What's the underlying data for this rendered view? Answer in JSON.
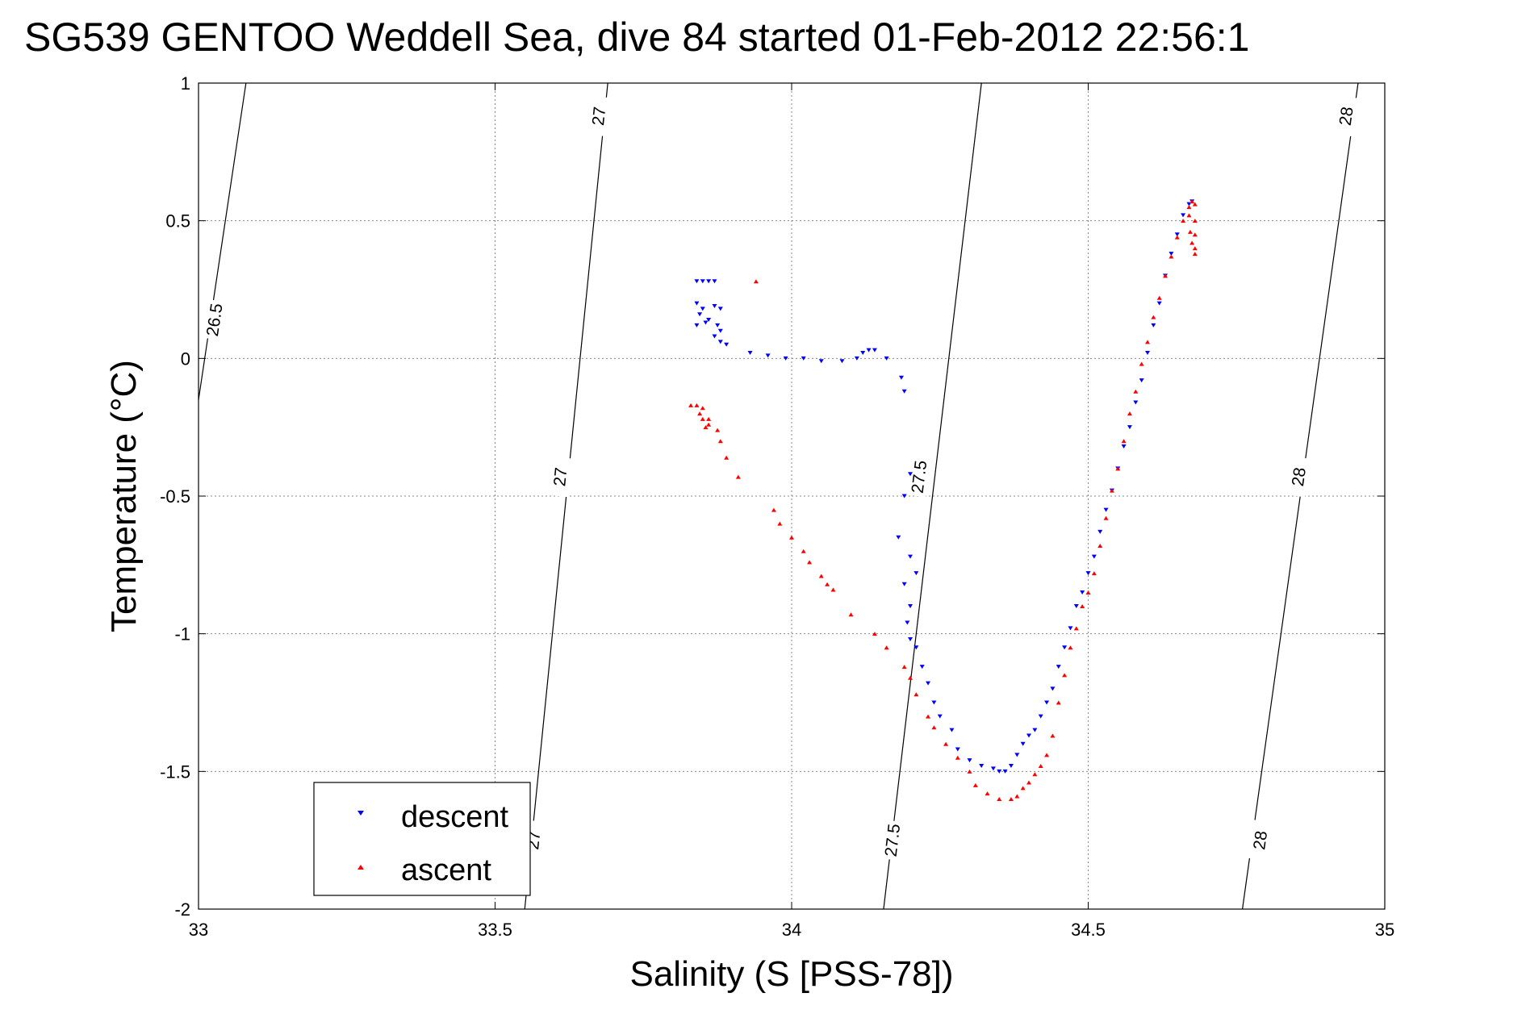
{
  "chart_data": {
    "type": "scatter",
    "title": "SG539 GENTOO Weddell Sea, dive 84 started 01-Feb-2012 22:56:1",
    "xlabel": "Salinity (S [PSS-78])",
    "ylabel": "Temperature (°C)",
    "xlim": [
      33,
      35
    ],
    "ylim": [
      -2,
      1
    ],
    "x_ticks": [
      33,
      33.5,
      34,
      34.5,
      35
    ],
    "y_ticks": [
      -2,
      -1.5,
      -1,
      -0.5,
      0,
      0.5,
      1
    ],
    "x_tick_labels": [
      "33",
      "33.5",
      "34",
      "34.5",
      "35"
    ],
    "y_tick_labels": [
      "-2",
      "-1.5",
      "-1",
      "-0.5",
      "0",
      "0.5",
      "1"
    ],
    "grid": true,
    "legend_position": "bottom-left",
    "density_contours": [
      {
        "level": "26.5",
        "points": [
          [
            33.0,
            -0.15
          ],
          [
            33.08,
            1.0
          ]
        ],
        "labels": [
          {
            "x": 33.027,
            "y": 0.14
          }
        ]
      },
      {
        "level": "27",
        "points": [
          [
            33.55,
            -2.0
          ],
          [
            33.69,
            1.0
          ]
        ],
        "labels": [
          {
            "x": 33.675,
            "y": 0.88
          },
          {
            "x": 33.61,
            "y": -0.43
          },
          {
            "x": 33.565,
            "y": -1.75
          }
        ]
      },
      {
        "level": "27.5",
        "points": [
          [
            34.155,
            -2.0
          ],
          [
            34.32,
            1.0
          ]
        ],
        "labels": [
          {
            "x": 34.215,
            "y": -0.43
          },
          {
            "x": 34.17,
            "y": -1.75
          }
        ]
      },
      {
        "level": "28",
        "points": [
          [
            34.76,
            -2.0
          ],
          [
            34.955,
            1.0
          ]
        ],
        "labels": [
          {
            "x": 34.935,
            "y": 0.88
          },
          {
            "x": 34.855,
            "y": -0.43
          },
          {
            "x": 34.79,
            "y": -1.75
          }
        ]
      }
    ],
    "series": [
      {
        "name": "descent",
        "color": "#0000ff",
        "marker": "triangle-down",
        "points": [
          [
            33.84,
            0.28
          ],
          [
            33.85,
            0.28
          ],
          [
            33.86,
            0.28
          ],
          [
            33.87,
            0.28
          ],
          [
            33.84,
            0.2
          ],
          [
            33.845,
            0.16
          ],
          [
            33.84,
            0.12
          ],
          [
            33.85,
            0.18
          ],
          [
            33.855,
            0.13
          ],
          [
            33.86,
            0.14
          ],
          [
            33.87,
            0.19
          ],
          [
            33.88,
            0.18
          ],
          [
            33.875,
            0.12
          ],
          [
            33.88,
            0.1
          ],
          [
            33.88,
            0.06
          ],
          [
            33.87,
            0.08
          ],
          [
            33.89,
            0.05
          ],
          [
            33.93,
            0.02
          ],
          [
            33.96,
            0.01
          ],
          [
            33.99,
            0.0
          ],
          [
            34.02,
            0.0
          ],
          [
            34.05,
            -0.01
          ],
          [
            34.085,
            -0.01
          ],
          [
            34.11,
            0.0
          ],
          [
            34.12,
            0.02
          ],
          [
            34.13,
            0.03
          ],
          [
            34.14,
            0.03
          ],
          [
            34.16,
            0.0
          ],
          [
            34.185,
            -0.07
          ],
          [
            34.19,
            -0.12
          ],
          [
            34.2,
            -0.42
          ],
          [
            34.19,
            -0.5
          ],
          [
            34.18,
            -0.65
          ],
          [
            34.2,
            -0.72
          ],
          [
            34.21,
            -0.78
          ],
          [
            34.19,
            -0.82
          ],
          [
            34.2,
            -0.9
          ],
          [
            34.195,
            -0.96
          ],
          [
            34.2,
            -1.02
          ],
          [
            34.21,
            -1.05
          ],
          [
            34.22,
            -1.12
          ],
          [
            34.23,
            -1.18
          ],
          [
            34.24,
            -1.25
          ],
          [
            34.25,
            -1.3
          ],
          [
            34.27,
            -1.35
          ],
          [
            34.28,
            -1.42
          ],
          [
            34.3,
            -1.46
          ],
          [
            34.32,
            -1.48
          ],
          [
            34.34,
            -1.49
          ],
          [
            34.35,
            -1.5
          ],
          [
            34.36,
            -1.5
          ],
          [
            34.37,
            -1.48
          ],
          [
            34.38,
            -1.44
          ],
          [
            34.39,
            -1.4
          ],
          [
            34.4,
            -1.37
          ],
          [
            34.41,
            -1.35
          ],
          [
            34.42,
            -1.3
          ],
          [
            34.43,
            -1.25
          ],
          [
            34.44,
            -1.2
          ],
          [
            34.45,
            -1.12
          ],
          [
            34.46,
            -1.05
          ],
          [
            34.47,
            -0.98
          ],
          [
            34.48,
            -0.9
          ],
          [
            34.49,
            -0.85
          ],
          [
            34.5,
            -0.78
          ],
          [
            34.51,
            -0.72
          ],
          [
            34.52,
            -0.63
          ],
          [
            34.53,
            -0.55
          ],
          [
            34.54,
            -0.48
          ],
          [
            34.55,
            -0.4
          ],
          [
            34.56,
            -0.32
          ],
          [
            34.57,
            -0.25
          ],
          [
            34.58,
            -0.16
          ],
          [
            34.59,
            -0.08
          ],
          [
            34.6,
            0.02
          ],
          [
            34.61,
            0.12
          ],
          [
            34.62,
            0.2
          ],
          [
            34.63,
            0.3
          ],
          [
            34.64,
            0.38
          ],
          [
            34.65,
            0.45
          ],
          [
            34.66,
            0.52
          ],
          [
            34.67,
            0.56
          ],
          [
            34.675,
            0.57
          ]
        ]
      },
      {
        "name": "ascent",
        "color": "#ff0000",
        "marker": "triangle-up",
        "points": [
          [
            33.94,
            0.28
          ],
          [
            33.84,
            -0.17
          ],
          [
            33.83,
            -0.17
          ],
          [
            33.85,
            -0.18
          ],
          [
            33.845,
            -0.2
          ],
          [
            33.85,
            -0.22
          ],
          [
            33.86,
            -0.22
          ],
          [
            33.855,
            -0.25
          ],
          [
            33.86,
            -0.24
          ],
          [
            33.875,
            -0.26
          ],
          [
            33.88,
            -0.3
          ],
          [
            33.89,
            -0.36
          ],
          [
            33.91,
            -0.43
          ],
          [
            33.97,
            -0.55
          ],
          [
            33.98,
            -0.6
          ],
          [
            34.0,
            -0.65
          ],
          [
            34.02,
            -0.7
          ],
          [
            34.03,
            -0.74
          ],
          [
            34.05,
            -0.79
          ],
          [
            34.06,
            -0.82
          ],
          [
            34.07,
            -0.84
          ],
          [
            34.1,
            -0.93
          ],
          [
            34.14,
            -1.0
          ],
          [
            34.16,
            -1.05
          ],
          [
            34.19,
            -1.12
          ],
          [
            34.2,
            -1.16
          ],
          [
            34.21,
            -1.22
          ],
          [
            34.23,
            -1.3
          ],
          [
            34.24,
            -1.34
          ],
          [
            34.26,
            -1.4
          ],
          [
            34.28,
            -1.45
          ],
          [
            34.3,
            -1.5
          ],
          [
            34.31,
            -1.55
          ],
          [
            34.33,
            -1.58
          ],
          [
            34.35,
            -1.6
          ],
          [
            34.37,
            -1.6
          ],
          [
            34.38,
            -1.59
          ],
          [
            34.39,
            -1.56
          ],
          [
            34.4,
            -1.54
          ],
          [
            34.41,
            -1.51
          ],
          [
            34.42,
            -1.48
          ],
          [
            34.43,
            -1.44
          ],
          [
            34.44,
            -1.37
          ],
          [
            34.45,
            -1.25
          ],
          [
            34.46,
            -1.15
          ],
          [
            34.47,
            -1.05
          ],
          [
            34.48,
            -0.98
          ],
          [
            34.49,
            -0.9
          ],
          [
            34.5,
            -0.85
          ],
          [
            34.51,
            -0.78
          ],
          [
            34.52,
            -0.68
          ],
          [
            34.53,
            -0.58
          ],
          [
            34.54,
            -0.48
          ],
          [
            34.55,
            -0.4
          ],
          [
            34.56,
            -0.3
          ],
          [
            34.57,
            -0.2
          ],
          [
            34.58,
            -0.12
          ],
          [
            34.59,
            -0.02
          ],
          [
            34.6,
            0.06
          ],
          [
            34.61,
            0.15
          ],
          [
            34.62,
            0.22
          ],
          [
            34.63,
            0.3
          ],
          [
            34.64,
            0.37
          ],
          [
            34.65,
            0.44
          ],
          [
            34.66,
            0.5
          ],
          [
            34.67,
            0.55
          ],
          [
            34.675,
            0.57
          ],
          [
            34.68,
            0.56
          ],
          [
            34.68,
            0.5
          ],
          [
            34.68,
            0.45
          ],
          [
            34.68,
            0.4
          ],
          [
            34.68,
            0.38
          ],
          [
            34.675,
            0.42
          ],
          [
            34.672,
            0.46
          ],
          [
            34.67,
            0.52
          ]
        ]
      }
    ]
  }
}
